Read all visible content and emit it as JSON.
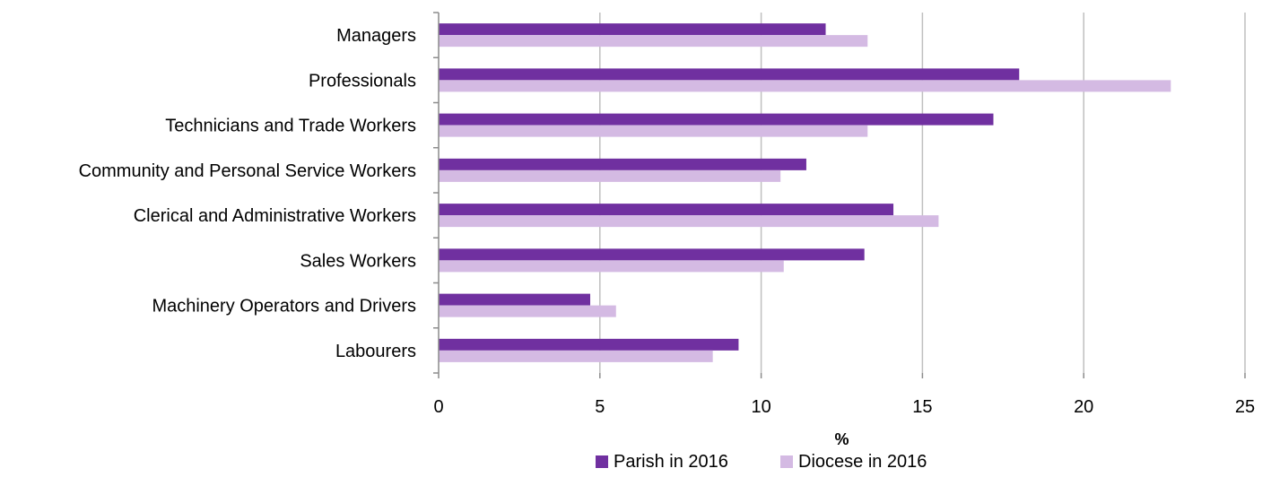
{
  "chart_data": {
    "type": "bar",
    "orientation": "horizontal",
    "categories": [
      "Managers",
      "Professionals",
      "Technicians and Trade Workers",
      "Community and Personal Service Workers",
      "Clerical and Administrative Workers",
      "Sales Workers",
      "Machinery Operators and Drivers",
      "Labourers"
    ],
    "series": [
      {
        "name": "Parish in 2016",
        "color": "#7030a0",
        "values": [
          12.0,
          18.0,
          17.2,
          11.4,
          14.1,
          13.2,
          4.7,
          9.3
        ]
      },
      {
        "name": "Diocese in 2016",
        "color": "#d4bae3",
        "values": [
          13.3,
          22.7,
          13.3,
          10.6,
          15.5,
          10.7,
          5.5,
          8.5
        ]
      }
    ],
    "xlabel": "%",
    "xlim": [
      0,
      25
    ],
    "xticks": [
      "0",
      "5",
      "10",
      "15",
      "20",
      "25"
    ],
    "grid": "vertical",
    "legend": "bottom"
  }
}
